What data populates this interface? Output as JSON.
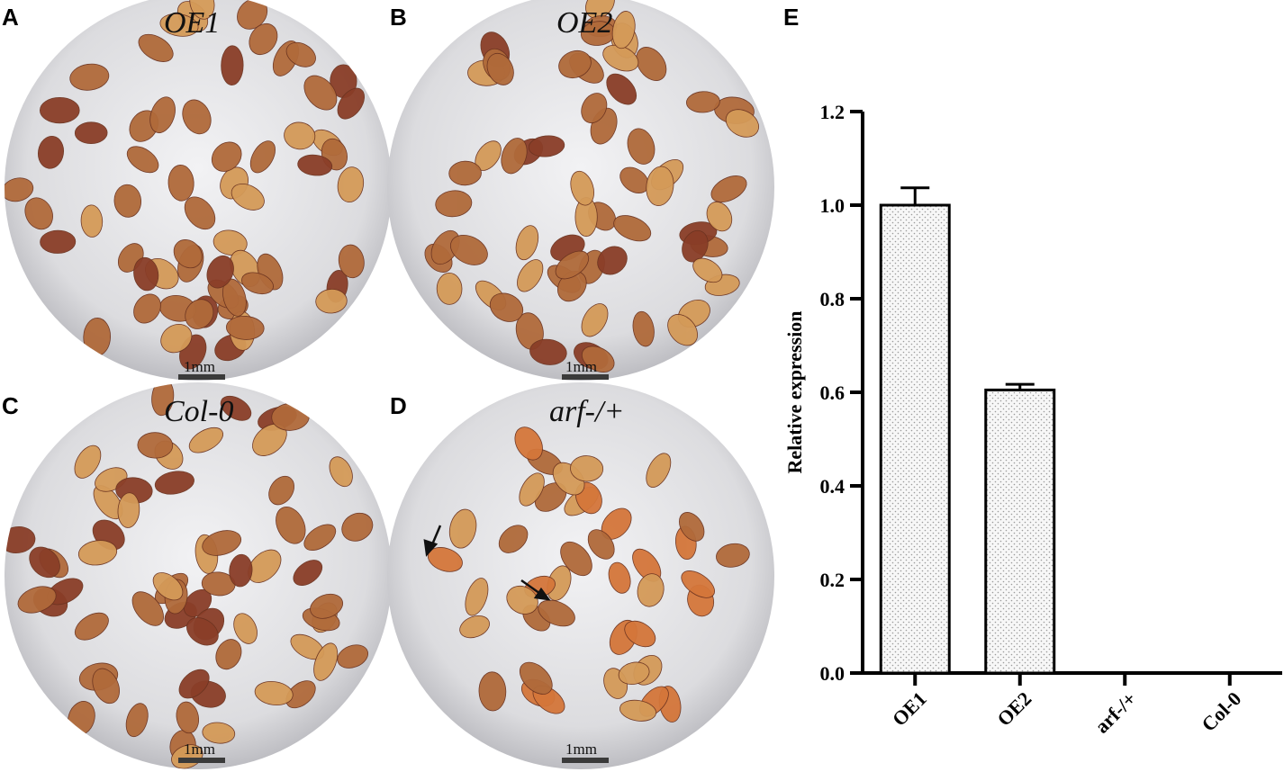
{
  "panels": [
    {
      "letter": "A",
      "title": "OE1",
      "scale_bar": "1mm",
      "seed_tone": "brown"
    },
    {
      "letter": "B",
      "title": "OE2",
      "scale_bar": "1mm",
      "seed_tone": "brown"
    },
    {
      "letter": "C",
      "title": "Col-0",
      "scale_bar": "1mm",
      "seed_tone": "brown"
    },
    {
      "letter": "D",
      "title": "arf-/+",
      "scale_bar": "1mm",
      "seed_tone": "orange"
    }
  ],
  "chart_letter": "E",
  "colors": {
    "seed_brown": "#b06a3a",
    "seed_dark": "#8a3e28",
    "seed_light": "#d49a58",
    "seed_orange": "#d4763a",
    "paper": "#e6e6e8",
    "bar_fill": "#f4f4f4",
    "axis": "#000000"
  },
  "chart_data": {
    "type": "bar",
    "categories": [
      "OE1",
      "OE2",
      "arf-/+",
      "Col-0"
    ],
    "values": [
      1.0,
      0.605,
      0.0,
      0.0
    ],
    "errors": [
      0.037,
      0.012,
      0.0,
      0.0
    ],
    "title": "",
    "xlabel": "",
    "ylabel": "Relative expression",
    "ylim": [
      0,
      1.2
    ],
    "yticks": [
      "0.0",
      "0.2",
      "0.4",
      "0.6",
      "0.8",
      "1.0",
      "1.2"
    ],
    "bar_pattern": "dotted",
    "grid": false
  }
}
